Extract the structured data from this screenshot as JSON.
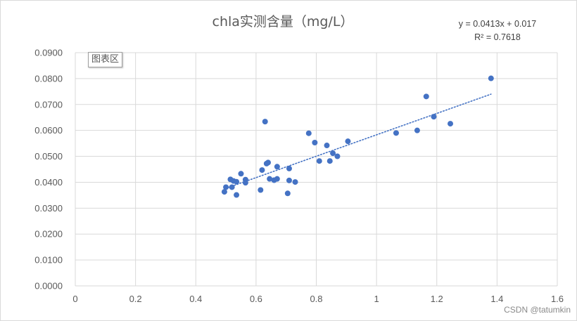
{
  "chart_data": {
    "type": "scatter",
    "title": "chla实测含量（mg/L）",
    "xlabel": "",
    "ylabel": "",
    "xlim": [
      0,
      1.6
    ],
    "ylim": [
      0,
      0.09
    ],
    "x_ticks": [
      "0",
      "0.2",
      "0.4",
      "0.6",
      "0.8",
      "1",
      "1.2",
      "1.4",
      "1.6"
    ],
    "y_ticks": [
      "0.0000",
      "0.0100",
      "0.0200",
      "0.0300",
      "0.0400",
      "0.0500",
      "0.0600",
      "0.0700",
      "0.0800",
      "0.0900"
    ],
    "grid": true,
    "legend": "none",
    "series": [
      {
        "color": "#4472c4",
        "points": [
          [
            0.495,
            0.0363
          ],
          [
            0.5,
            0.0381
          ],
          [
            0.515,
            0.0411
          ],
          [
            0.52,
            0.0381
          ],
          [
            0.525,
            0.0405
          ],
          [
            0.535,
            0.0402
          ],
          [
            0.535,
            0.0351
          ],
          [
            0.55,
            0.0433
          ],
          [
            0.565,
            0.041
          ],
          [
            0.565,
            0.0398
          ],
          [
            0.615,
            0.037
          ],
          [
            0.62,
            0.0447
          ],
          [
            0.63,
            0.0634
          ],
          [
            0.635,
            0.0472
          ],
          [
            0.64,
            0.0476
          ],
          [
            0.645,
            0.0413
          ],
          [
            0.66,
            0.0408
          ],
          [
            0.67,
            0.0413
          ],
          [
            0.67,
            0.046
          ],
          [
            0.705,
            0.0357
          ],
          [
            0.71,
            0.0453
          ],
          [
            0.71,
            0.0407
          ],
          [
            0.73,
            0.0401
          ],
          [
            0.775,
            0.0589
          ],
          [
            0.795,
            0.0553
          ],
          [
            0.81,
            0.0482
          ],
          [
            0.835,
            0.0542
          ],
          [
            0.845,
            0.0482
          ],
          [
            0.855,
            0.0512
          ],
          [
            0.87,
            0.05
          ],
          [
            0.905,
            0.0558
          ],
          [
            1.065,
            0.059
          ],
          [
            1.135,
            0.06
          ],
          [
            1.165,
            0.0731
          ],
          [
            1.19,
            0.0653
          ],
          [
            1.245,
            0.0626
          ],
          [
            1.38,
            0.0801
          ]
        ]
      }
    ],
    "trendline": {
      "type": "linear",
      "slope": 0.0413,
      "intercept": 0.017,
      "x_range": [
        0.5,
        1.38
      ],
      "color": "#4472c4",
      "style": "dotted",
      "equation_label": "y = 0.0413x + 0.017",
      "r2_label": "R² = 0.7618"
    }
  },
  "chart_area_label": "图表区",
  "watermark": "CSDN @tatumkin"
}
